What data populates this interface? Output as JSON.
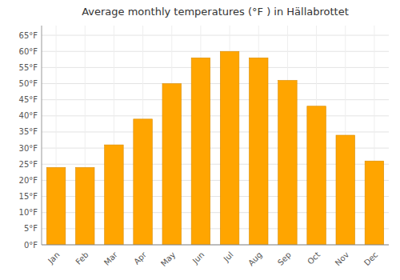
{
  "chart_data": {
    "type": "bar",
    "title": "Average monthly temperatures (°F ) in Hällabrottet",
    "categories": [
      "Jan",
      "Feb",
      "Mar",
      "Apr",
      "May",
      "Jun",
      "Jul",
      "Aug",
      "Sep",
      "Oct",
      "Nov",
      "Dec"
    ],
    "values": [
      24,
      24,
      31,
      39,
      50,
      58,
      60,
      58,
      51,
      43,
      34,
      26
    ],
    "color": "#FFA500",
    "ylim": [
      0,
      68
    ],
    "yticks": [
      {
        "value": 0,
        "label": "0°F"
      },
      {
        "value": 5,
        "label": "5°F"
      },
      {
        "value": 10,
        "label": "10°F"
      },
      {
        "value": 15,
        "label": "15°F"
      },
      {
        "value": 20,
        "label": "20°F"
      },
      {
        "value": 25,
        "label": "25°F"
      },
      {
        "value": 30,
        "label": "30°F"
      },
      {
        "value": 35,
        "label": "35°F"
      },
      {
        "value": 40,
        "label": "40°F"
      },
      {
        "value": 45,
        "label": "45°F"
      },
      {
        "value": 50,
        "label": "50°F"
      },
      {
        "value": 55,
        "label": "55°F"
      },
      {
        "value": 60,
        "label": "60°F"
      },
      {
        "value": 65,
        "label": "65°F"
      }
    ],
    "grid": true
  }
}
